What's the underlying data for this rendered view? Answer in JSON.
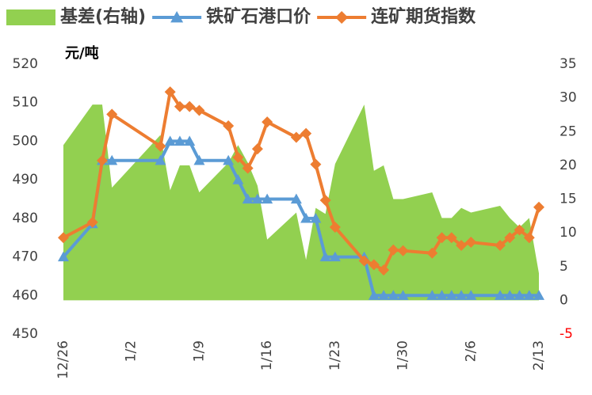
{
  "chart_data": {
    "type": "line",
    "y_label": "元/吨",
    "x": [
      "12/26",
      "12/29",
      "12/30",
      "12/31",
      "1/5",
      "1/6",
      "1/7",
      "1/8",
      "1/9",
      "1/12",
      "1/13",
      "1/14",
      "1/15",
      "1/16",
      "1/19",
      "1/20",
      "1/21",
      "1/22",
      "1/23",
      "1/26",
      "1/27",
      "1/28",
      "1/29",
      "1/30",
      "2/2",
      "2/3",
      "2/4",
      "2/5",
      "2/6",
      "2/9",
      "2/10",
      "2/11",
      "2/12",
      "2/13"
    ],
    "xticks": [
      "12/26",
      "1/2",
      "1/9",
      "1/16",
      "1/23",
      "1/30",
      "2/6",
      "2/13"
    ],
    "ylim": [
      450,
      520
    ],
    "yticks": [
      450,
      460,
      470,
      480,
      490,
      500,
      510,
      520
    ],
    "y2lim": [
      -5,
      35
    ],
    "y2ticks": [
      -5,
      0,
      5,
      10,
      15,
      20,
      25,
      30,
      35
    ],
    "y2_negative_tick_color": "#ff0000",
    "grid": false,
    "legend": "top",
    "series": [
      {
        "name": "基差(右轴)",
        "type": "area",
        "axis": "y2",
        "color": "#92d050",
        "values": [
          23,
          29,
          29,
          16.7,
          24.5,
          16.3,
          20,
          20,
          16,
          20.4,
          23,
          20.4,
          17,
          9,
          13,
          6,
          13.7,
          12.8,
          20.2,
          29,
          19.2,
          20,
          15,
          15,
          16,
          12.2,
          12.2,
          13.7,
          13,
          14,
          12.2,
          10.8,
          12.2,
          4
        ]
      },
      {
        "name": "铁矿石港口价",
        "type": "line",
        "marker": "triangle",
        "color": "#5b9bd5",
        "values": [
          470,
          478.6,
          495,
          495,
          495,
          500,
          500,
          500,
          495,
          495,
          490,
          485,
          485,
          485,
          485,
          480,
          480,
          470,
          470,
          470,
          460,
          460,
          460,
          460,
          460,
          460,
          460,
          460,
          460,
          460,
          460,
          460,
          460,
          460
        ]
      },
      {
        "name": "连矿期货指数",
        "type": "line",
        "marker": "diamond",
        "color": "#ed7d31",
        "values": [
          475,
          479,
          495,
          507,
          498.7,
          512.8,
          509,
          509,
          508,
          504,
          495.8,
          493,
          498,
          505,
          501,
          502,
          494,
          484.7,
          477.7,
          469,
          468,
          466.6,
          471.8,
          471.6,
          471,
          475,
          475,
          473,
          473.8,
          473,
          475,
          477,
          475,
          482.9
        ]
      }
    ]
  }
}
